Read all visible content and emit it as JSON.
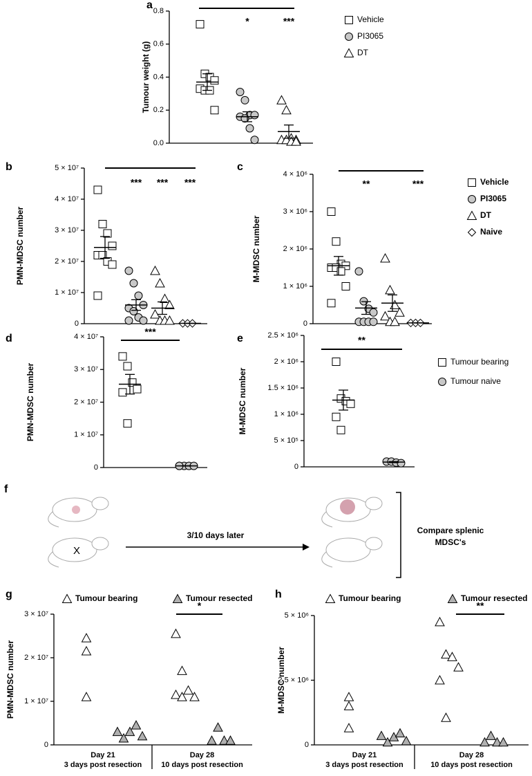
{
  "chart_data": [
    {
      "type": "dot",
      "panel": "a",
      "ylabel": "Tumour weight (g)",
      "ylim": [
        0,
        0.8
      ],
      "yticks": [
        {
          "value": 0,
          "label": "0.0"
        },
        {
          "value": 0.2,
          "label": "0.2"
        },
        {
          "value": 0.4,
          "label": "0.4"
        },
        {
          "value": 0.6,
          "label": "0.6"
        },
        {
          "value": 0.8,
          "label": "0.8"
        }
      ],
      "series": [
        {
          "name": "Vehicle",
          "marker": "square",
          "color": "#ffffff",
          "values": [
            0.72,
            0.42,
            0.4,
            0.38,
            0.33,
            0.32,
            0.32,
            0.2
          ],
          "mean": 0.37,
          "sem": 0.05
        },
        {
          "name": "PI3065",
          "marker": "circle",
          "color": "#c8c8c8",
          "values": [
            0.31,
            0.26,
            0.17,
            0.17,
            0.16,
            0.15,
            0.09,
            0.02
          ],
          "mean": 0.16,
          "sem": 0.03
        },
        {
          "name": "DT",
          "marker": "triangle",
          "color": "#ffffff",
          "values": [
            0.26,
            0.2,
            0.03,
            0.02,
            0.02,
            0.02,
            0.01,
            0.01
          ],
          "mean": 0.07,
          "sem": 0.04
        }
      ],
      "significance": [
        null,
        "*",
        "***"
      ],
      "legend": true
    },
    {
      "type": "dot",
      "panel": "b",
      "ylabel": "PMN-MDSC number",
      "ylim": [
        0,
        50000000
      ],
      "yticks": [
        0,
        {
          "value": 10000000,
          "label": "1 × 10⁷"
        },
        {
          "value": 20000000,
          "label": "2 × 10⁷"
        },
        {
          "value": 30000000,
          "label": "3 × 10⁷"
        },
        {
          "value": 40000000,
          "label": "4 × 10⁷"
        },
        {
          "value": 50000000,
          "label": "5 × 10⁷"
        }
      ],
      "series": [
        {
          "marker": "square",
          "color": "#ffffff",
          "values": [
            43000000,
            32000000,
            29000000,
            25000000,
            22000000,
            22000000,
            20000000,
            19000000,
            9000000
          ],
          "mean": 24500000,
          "sem": 3500000
        },
        {
          "marker": "circle",
          "color": "#c8c8c8",
          "values": [
            17000000,
            13000000,
            9000000,
            6000000,
            5000000,
            4000000,
            2000000,
            1000000,
            1000000
          ],
          "mean": 6000000,
          "sem": 1700000
        },
        {
          "marker": "triangle",
          "color": "#ffffff",
          "values": [
            17000000,
            13000000,
            8000000,
            6000000,
            3000000,
            1000000,
            1000000,
            1000000
          ],
          "mean": 5000000,
          "sem": 2000000
        },
        {
          "marker": "diamond",
          "color": "#ffffff",
          "values": [
            100000,
            100000,
            100000
          ],
          "mean": 100000,
          "sem": 0
        }
      ],
      "significance": [
        null,
        "***",
        "***",
        "***"
      ],
      "legend": false
    },
    {
      "type": "dot",
      "panel": "c",
      "ylabel": "M-MDSC number",
      "ylim": [
        0,
        4000000
      ],
      "yticks": [
        0,
        {
          "value": 1000000,
          "label": "1 × 10⁶"
        },
        {
          "value": 2000000,
          "label": "2 × 10⁶"
        },
        {
          "value": 3000000,
          "label": "3 × 10⁶"
        },
        {
          "value": 4000000,
          "label": "4 × 10⁶"
        }
      ],
      "series": [
        {
          "name": "Vehicle",
          "marker": "square",
          "color": "#ffffff",
          "values": [
            3000000,
            2200000,
            1600000,
            1550000,
            1500000,
            1500000,
            1400000,
            1000000,
            550000
          ],
          "mean": 1550000,
          "sem": 250000
        },
        {
          "name": "PI3065",
          "marker": "circle",
          "color": "#c8c8c8",
          "values": [
            1400000,
            600000,
            400000,
            300000,
            50000,
            50000,
            50000,
            50000
          ],
          "mean": 420000,
          "sem": 170000
        },
        {
          "name": "DT",
          "marker": "triangle",
          "color": "#ffffff",
          "values": [
            1750000,
            900000,
            500000,
            300000,
            200000,
            50000,
            50000
          ],
          "mean": 550000,
          "sem": 220000
        },
        {
          "name": "Naive",
          "marker": "diamond",
          "color": "#ffffff",
          "values": [
            20000,
            20000,
            20000
          ],
          "mean": 20000,
          "sem": 0
        }
      ],
      "significance": [
        null,
        "**",
        null,
        "***"
      ],
      "legend": true
    },
    {
      "type": "dot",
      "panel": "d",
      "ylabel": "PMN-MDSC number",
      "ylim": [
        0,
        40000000
      ],
      "yticks": [
        0,
        {
          "value": 10000000,
          "label": "1 × 10⁷"
        },
        {
          "value": 20000000,
          "label": "2 × 10⁷"
        },
        {
          "value": 30000000,
          "label": "3 × 10⁷"
        },
        {
          "value": 40000000,
          "label": "4 × 10⁷"
        }
      ],
      "series": [
        {
          "marker": "square",
          "color": "#ffffff",
          "values": [
            34000000,
            31000000,
            26000000,
            24000000,
            23000000,
            13500000
          ],
          "mean": 25500000,
          "sem": 3000000
        },
        {
          "marker": "circle",
          "color": "#c8c8c8",
          "values": [
            500000,
            500000,
            500000,
            500000,
            500000
          ],
          "mean": 500000,
          "sem": 50000
        }
      ],
      "significance": [
        null,
        "***"
      ],
      "legend": false
    },
    {
      "type": "dot",
      "panel": "e",
      "ylabel": "M-MDSC number",
      "ylim": [
        0,
        2500000
      ],
      "yticks": [
        0,
        {
          "value": 500000,
          "label": "5 × 10⁵"
        },
        {
          "value": 1000000,
          "label": "1 × 10⁶"
        },
        {
          "value": 1500000,
          "label": "1.5 × 10⁶"
        },
        {
          "value": 2000000,
          "label": "2 × 10⁶"
        },
        {
          "value": 2500000,
          "label": "2.5 × 10⁶"
        }
      ],
      "series": [
        {
          "name": "Tumour bearing",
          "marker": "square",
          "color": "#ffffff",
          "values": [
            2000000,
            1300000,
            1250000,
            1200000,
            950000,
            700000
          ],
          "mean": 1270000,
          "sem": 190000
        },
        {
          "name": "Tumour naive",
          "marker": "circle",
          "color": "#c8c8c8",
          "values": [
            100000,
            100000,
            80000,
            70000
          ],
          "mean": 90000,
          "sem": 10000
        }
      ],
      "significance": [
        null,
        "**"
      ],
      "legend": true
    },
    {
      "type": "grouped_dot",
      "panel": "g",
      "ylabel": "PMN-MDSC number",
      "categories": [
        "Day 21",
        "Day 28"
      ],
      "category_notes": [
        "3 days post resection",
        "10 days post resection"
      ],
      "ylim": [
        0,
        30000000
      ],
      "yticks": [
        0,
        {
          "value": 10000000,
          "label": "1 × 10⁷"
        },
        {
          "value": 20000000,
          "label": "2 × 10⁷"
        },
        {
          "value": 30000000,
          "label": "3 × 10⁷"
        }
      ],
      "series": [
        {
          "name": "Tumour bearing",
          "marker": "triangle",
          "color": "#ffffff",
          "values": [
            [
              24500000,
              21500000,
              11000000
            ],
            [
              25500000,
              17000000,
              12500000,
              11000000,
              11500000,
              11000000
            ]
          ]
        },
        {
          "name": "Tumour resected",
          "marker": "triangle",
          "color": "#b0b0b0",
          "values": [
            [
              3000000,
              1500000,
              3000000,
              4500000,
              2000000
            ],
            [
              1000000,
              4000000,
              1000000,
              1000000
            ]
          ]
        }
      ],
      "significance": [
        null,
        "*"
      ],
      "legend": true
    },
    {
      "type": "grouped_dot",
      "panel": "h",
      "ylabel": "M-MDSC number",
      "categories": [
        "Day 21",
        "Day 28"
      ],
      "category_notes": [
        "3 days post resection",
        "10 days post resection"
      ],
      "ylim": [
        0,
        5000000
      ],
      "yticks": [
        0,
        {
          "value": 2500000,
          "label": "2.5 × 10⁶"
        },
        {
          "value": 5000000,
          "label": "5 × 10⁶"
        }
      ],
      "series": [
        {
          "name": "Tumour bearing",
          "marker": "triangle",
          "color": "#ffffff",
          "values": [
            [
              1850000,
              1500000,
              650000
            ],
            [
              4750000,
              3500000,
              3400000,
              3000000,
              2500000,
              1050000
            ]
          ]
        },
        {
          "name": "Tumour resected",
          "marker": "triangle",
          "color": "#b0b0b0",
          "values": [
            [
              350000,
              100000,
              300000,
              450000,
              150000
            ],
            [
              100000,
              350000,
              100000,
              100000
            ]
          ]
        }
      ],
      "significance": [
        null,
        "**"
      ],
      "legend": true
    }
  ],
  "diagram": {
    "panel": "f",
    "arrow_label": "3/10 days later",
    "result": [
      "Compare splenic",
      "MDSC's"
    ]
  }
}
